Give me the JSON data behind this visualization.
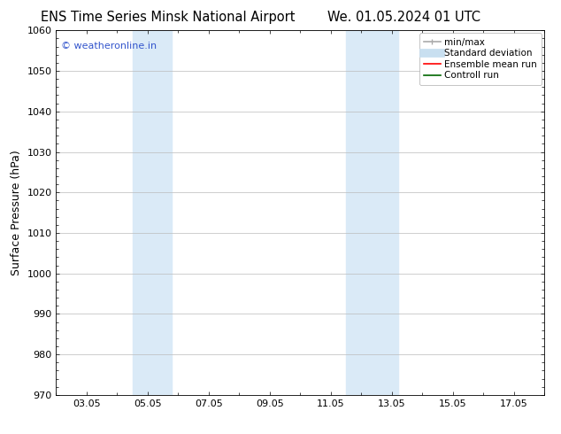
{
  "title_left": "ENS Time Series Minsk National Airport",
  "title_right": "We. 01.05.2024 01 UTC",
  "ylabel": "Surface Pressure (hPa)",
  "background_color": "#ffffff",
  "plot_bg_color": "#ffffff",
  "ylim": [
    970,
    1060
  ],
  "yticks": [
    970,
    980,
    990,
    1000,
    1010,
    1020,
    1030,
    1040,
    1050,
    1060
  ],
  "xtick_labels": [
    "03.05",
    "05.05",
    "07.05",
    "09.05",
    "11.05",
    "13.05",
    "15.05",
    "17.05"
  ],
  "xtick_positions": [
    3,
    5,
    7,
    9,
    11,
    13,
    15,
    17
  ],
  "xlim": [
    2,
    18
  ],
  "shaded_bands": [
    {
      "xmin": 4.5,
      "xmax": 5.8,
      "color": "#daeaf7"
    },
    {
      "xmin": 11.5,
      "xmax": 13.2,
      "color": "#daeaf7"
    }
  ],
  "copyright_text": "© weatheronline.in",
  "copyright_color": "#3355cc",
  "legend_items": [
    {
      "label": "min/max",
      "color": "#aaaaaa",
      "lw": 1.2,
      "style": "line_with_caps"
    },
    {
      "label": "Standard deviation",
      "color": "#c8dff0",
      "lw": 7,
      "style": "solid"
    },
    {
      "label": "Ensemble mean run",
      "color": "#ff0000",
      "lw": 1.2,
      "style": "solid"
    },
    {
      "label": "Controll run",
      "color": "#006600",
      "lw": 1.2,
      "style": "solid"
    }
  ],
  "grid_color": "#bbbbbb",
  "tick_color": "#000000",
  "axis_color": "#000000",
  "font_size_title": 10.5,
  "font_size_axis": 9,
  "font_size_tick": 8,
  "font_size_legend": 7.5,
  "font_size_copyright": 8
}
